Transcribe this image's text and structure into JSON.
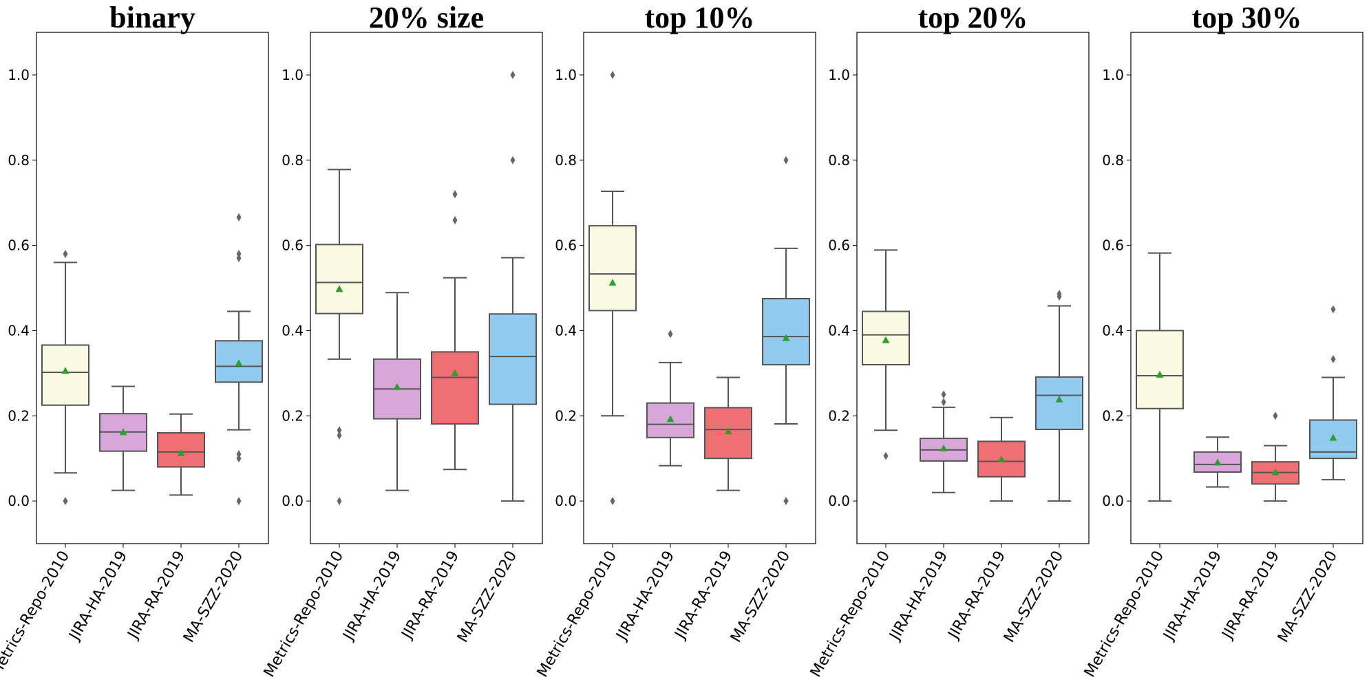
{
  "chart_data": {
    "type": "box",
    "y_range": [
      -0.1,
      1.1
    ],
    "y_ticks": [
      "0.0",
      "0.2",
      "0.4",
      "0.6",
      "0.8",
      "1.0"
    ],
    "categories": [
      "Metrics-Repo-2010",
      "JIRA-HA-2019",
      "JIRA-RA-2019",
      "MA-SZZ-2020"
    ],
    "colors": [
      "#fafae3",
      "#d8a7da",
      "#ee7074",
      "#93cbf0"
    ],
    "mean_marker_color": "#2ca02c",
    "line_color": "#555555",
    "grid": false,
    "panels": [
      {
        "title": "binary",
        "boxes": [
          {
            "category": "Metrics-Repo-2010",
            "q1": 0.225,
            "median": 0.302,
            "q3": 0.366,
            "whisker_low": 0.066,
            "whisker_high": 0.56,
            "mean": 0.305,
            "outliers": [
              0.0,
              0.58
            ]
          },
          {
            "category": "JIRA-HA-2019",
            "q1": 0.117,
            "median": 0.162,
            "q3": 0.205,
            "whisker_low": 0.025,
            "whisker_high": 0.269,
            "mean": 0.161,
            "outliers": []
          },
          {
            "category": "JIRA-RA-2019",
            "q1": 0.08,
            "median": 0.115,
            "q3": 0.16,
            "whisker_low": 0.014,
            "whisker_high": 0.204,
            "mean": 0.112,
            "outliers": []
          },
          {
            "category": "MA-SZZ-2020",
            "q1": 0.279,
            "median": 0.316,
            "q3": 0.376,
            "whisker_low": 0.167,
            "whisker_high": 0.445,
            "mean": 0.323,
            "outliers": [
              0.0,
              0.1,
              0.11,
              0.57,
              0.58,
              0.666
            ]
          }
        ]
      },
      {
        "title": "20% size",
        "boxes": [
          {
            "category": "Metrics-Repo-2010",
            "q1": 0.44,
            "median": 0.513,
            "q3": 0.602,
            "whisker_low": 0.333,
            "whisker_high": 0.778,
            "mean": 0.497,
            "outliers": [
              0.0,
              0.154,
              0.166
            ]
          },
          {
            "category": "JIRA-HA-2019",
            "q1": 0.193,
            "median": 0.263,
            "q3": 0.333,
            "whisker_low": 0.025,
            "whisker_high": 0.489,
            "mean": 0.267,
            "outliers": []
          },
          {
            "category": "JIRA-RA-2019",
            "q1": 0.181,
            "median": 0.29,
            "q3": 0.35,
            "whisker_low": 0.074,
            "whisker_high": 0.524,
            "mean": 0.3,
            "outliers": [
              0.659,
              0.72
            ]
          },
          {
            "category": "MA-SZZ-2020",
            "q1": 0.227,
            "median": 0.339,
            "q3": 0.439,
            "whisker_low": 0.0,
            "whisker_high": 0.571,
            "mean": null,
            "outliers": [
              0.8,
              1.0
            ]
          }
        ]
      },
      {
        "title": "top 10%",
        "boxes": [
          {
            "category": "Metrics-Repo-2010",
            "q1": 0.447,
            "median": 0.533,
            "q3": 0.646,
            "whisker_low": 0.2,
            "whisker_high": 0.727,
            "mean": 0.512,
            "outliers": [
              0.0,
              1.0
            ]
          },
          {
            "category": "JIRA-HA-2019",
            "q1": 0.149,
            "median": 0.18,
            "q3": 0.23,
            "whisker_low": 0.083,
            "whisker_high": 0.325,
            "mean": 0.192,
            "outliers": [
              0.392
            ]
          },
          {
            "category": "JIRA-RA-2019",
            "q1": 0.1,
            "median": 0.168,
            "q3": 0.219,
            "whisker_low": 0.025,
            "whisker_high": 0.29,
            "mean": 0.163,
            "outliers": []
          },
          {
            "category": "MA-SZZ-2020",
            "q1": 0.32,
            "median": 0.386,
            "q3": 0.475,
            "whisker_low": 0.181,
            "whisker_high": 0.593,
            "mean": 0.382,
            "outliers": [
              0.0,
              0.8
            ]
          }
        ]
      },
      {
        "title": "top 20%",
        "boxes": [
          {
            "category": "Metrics-Repo-2010",
            "q1": 0.32,
            "median": 0.39,
            "q3": 0.445,
            "whisker_low": 0.166,
            "whisker_high": 0.589,
            "mean": 0.377,
            "outliers": [
              0.106
            ]
          },
          {
            "category": "JIRA-HA-2019",
            "q1": 0.094,
            "median": 0.12,
            "q3": 0.147,
            "whisker_low": 0.02,
            "whisker_high": 0.22,
            "mean": 0.123,
            "outliers": [
              0.232,
              0.25
            ]
          },
          {
            "category": "JIRA-RA-2019",
            "q1": 0.057,
            "median": 0.093,
            "q3": 0.14,
            "whisker_low": 0.0,
            "whisker_high": 0.196,
            "mean": 0.097,
            "outliers": []
          },
          {
            "category": "MA-SZZ-2020",
            "q1": 0.168,
            "median": 0.248,
            "q3": 0.291,
            "whisker_low": 0.0,
            "whisker_high": 0.458,
            "mean": 0.238,
            "outliers": [
              0.48,
              0.486
            ]
          }
        ]
      },
      {
        "title": "top 30%",
        "boxes": [
          {
            "category": "Metrics-Repo-2010",
            "q1": 0.217,
            "median": 0.294,
            "q3": 0.4,
            "whisker_low": 0.0,
            "whisker_high": 0.582,
            "mean": 0.296,
            "outliers": []
          },
          {
            "category": "JIRA-HA-2019",
            "q1": 0.068,
            "median": 0.086,
            "q3": 0.115,
            "whisker_low": 0.033,
            "whisker_high": 0.15,
            "mean": 0.09,
            "outliers": []
          },
          {
            "category": "JIRA-RA-2019",
            "q1": 0.04,
            "median": 0.067,
            "q3": 0.092,
            "whisker_low": 0.0,
            "whisker_high": 0.13,
            "mean": 0.067,
            "outliers": [
              0.2
            ]
          },
          {
            "category": "MA-SZZ-2020",
            "q1": 0.1,
            "median": 0.115,
            "q3": 0.19,
            "whisker_low": 0.05,
            "whisker_high": 0.29,
            "mean": 0.148,
            "outliers": [
              0.333,
              0.45
            ]
          }
        ]
      }
    ]
  }
}
